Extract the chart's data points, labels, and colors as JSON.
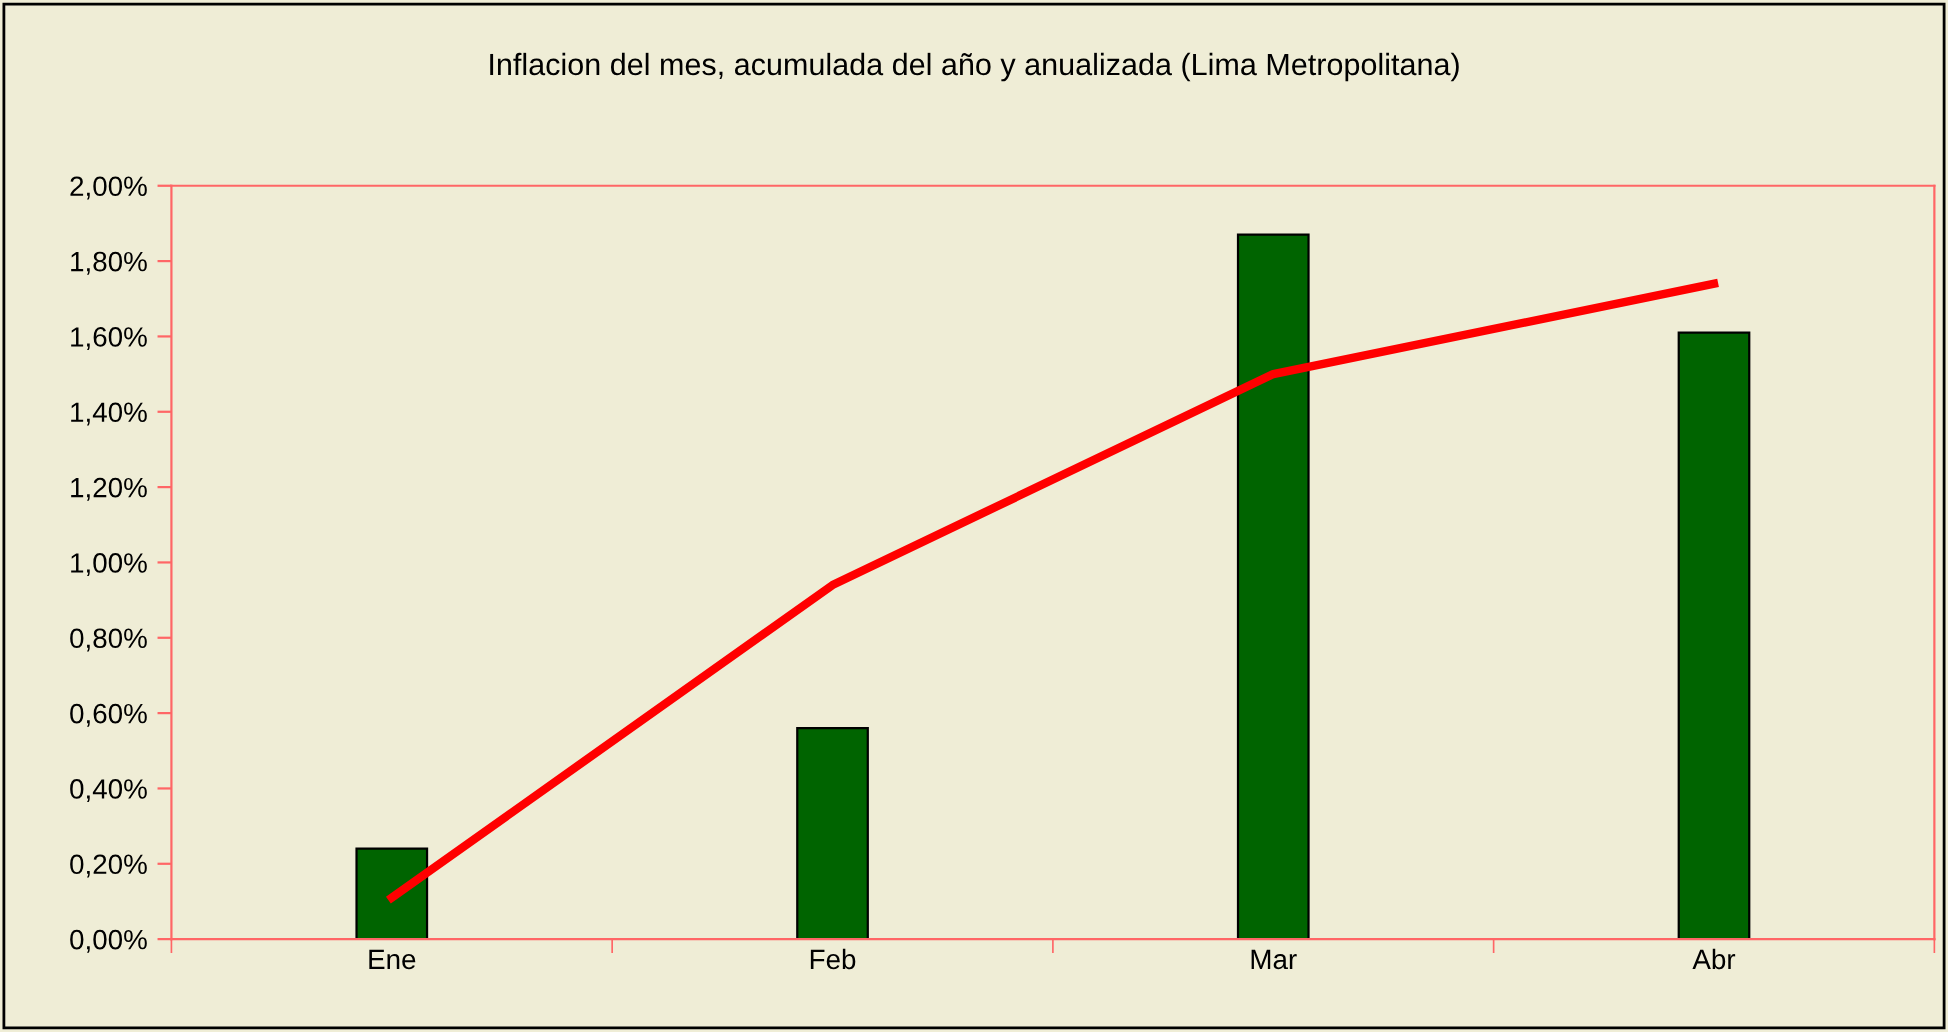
{
  "chart_data": {
    "type": "bar",
    "title": "Inflacion del mes, acumulada del año y anualizada (Lima Metropolitana)",
    "categories": [
      "Ene",
      "Feb",
      "Mar",
      "Abr"
    ],
    "series": [
      {
        "color": "#006400",
        "values": [
          0.24,
          0.56,
          1.87,
          1.61
        ]
      },
      {
        "type": "line",
        "color": "#ff0000",
        "values": [
          0.11,
          0.94,
          1.5,
          1.74
        ]
      }
    ],
    "ylim": [
      0,
      2.0
    ],
    "yticks": [
      {
        "value": 0,
        "label": "0,00%"
      },
      {
        "value": 0.2,
        "label": "0,20%"
      },
      {
        "value": 0.4,
        "label": "0,40%"
      },
      {
        "value": 0.6,
        "label": "0,60%"
      },
      {
        "value": 0.8,
        "label": "0,80%"
      },
      {
        "value": 1.0,
        "label": "1,00%"
      },
      {
        "value": 1.2,
        "label": "1,20%"
      },
      {
        "value": 1.4,
        "label": "1,40%"
      },
      {
        "value": 1.6,
        "label": "1,60%"
      },
      {
        "value": 1.8,
        "label": "1,80%"
      },
      {
        "value": 2.0,
        "label": "2,00%"
      }
    ],
    "grid": false,
    "marker": "none",
    "line_style": "solid"
  }
}
